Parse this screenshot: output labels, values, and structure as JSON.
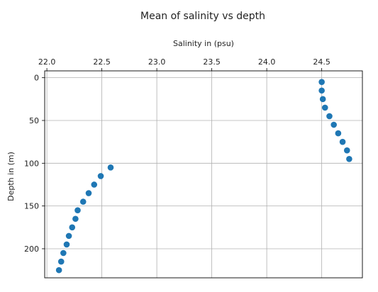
{
  "chart_data": {
    "type": "scatter",
    "title": "Mean of salinity vs depth",
    "xlabel": "Salinity in (psu)",
    "ylabel": "Depth in (m)",
    "x_axis_position": "top",
    "y_axis_inverted": true,
    "xlim": [
      21.98,
      24.87
    ],
    "ylim": [
      234,
      -8
    ],
    "xticks": [
      22.0,
      22.5,
      23.0,
      23.5,
      24.0,
      24.5
    ],
    "xtick_labels": [
      "22.0",
      "22.5",
      "23.0",
      "23.5",
      "24.0",
      "24.5"
    ],
    "yticks": [
      0,
      50,
      100,
      150,
      200
    ],
    "ytick_labels": [
      "0",
      "50",
      "100",
      "150",
      "200"
    ],
    "grid": true,
    "marker_color": "#1f77b4",
    "points": [
      {
        "x": 24.5,
        "y": 5
      },
      {
        "x": 24.5,
        "y": 15
      },
      {
        "x": 24.51,
        "y": 25
      },
      {
        "x": 24.53,
        "y": 35
      },
      {
        "x": 24.57,
        "y": 45
      },
      {
        "x": 24.61,
        "y": 55
      },
      {
        "x": 24.65,
        "y": 65
      },
      {
        "x": 24.69,
        "y": 75
      },
      {
        "x": 24.73,
        "y": 85
      },
      {
        "x": 24.75,
        "y": 95
      },
      {
        "x": 22.58,
        "y": 105
      },
      {
        "x": 22.49,
        "y": 115
      },
      {
        "x": 22.43,
        "y": 125
      },
      {
        "x": 22.38,
        "y": 135
      },
      {
        "x": 22.33,
        "y": 145
      },
      {
        "x": 22.28,
        "y": 155
      },
      {
        "x": 22.26,
        "y": 165
      },
      {
        "x": 22.23,
        "y": 175
      },
      {
        "x": 22.2,
        "y": 185
      },
      {
        "x": 22.18,
        "y": 195
      },
      {
        "x": 22.15,
        "y": 205
      },
      {
        "x": 22.13,
        "y": 215
      },
      {
        "x": 22.11,
        "y": 225
      }
    ]
  }
}
